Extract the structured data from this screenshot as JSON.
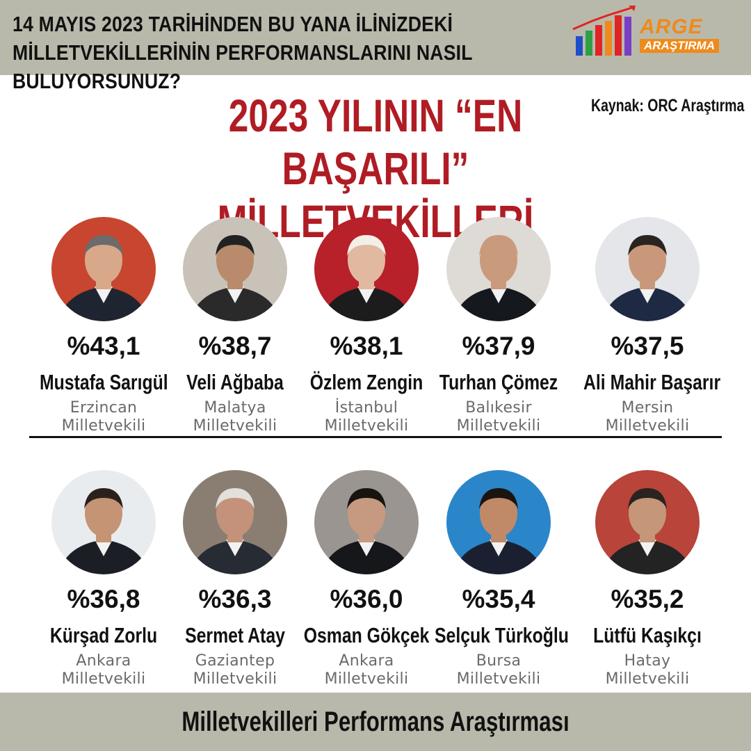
{
  "header": {
    "question_line1": "14 MAYIS 2023 TARİHİNDEN BU YANA İLİNİZDEKİ",
    "question_line2": "MİLLETVEKİLLERİNİN PERFORMANSLARINI NASIL BULUYORSUNUZ?"
  },
  "logo": {
    "word": "ARGE",
    "sub": "ARAŞTIRMA",
    "colors": {
      "orange": "#ee8a1b",
      "red": "#e02424",
      "blue": "#1f4fc8",
      "green": "#2ea043",
      "purple": "#7a3fc4"
    }
  },
  "title": {
    "line1": "2023 YILININ “EN BAŞARILI”",
    "line2": "MİLLETVEKİLLERİ",
    "color": "#b01c24"
  },
  "source": "Kaynak: ORC Araştırma",
  "deputies": [
    {
      "percent": "%43,1",
      "name": "Mustafa Sarıgül",
      "city": "Erzincan",
      "role": "Milletvekili",
      "bg": "#c8452f",
      "suit": "#1f2530",
      "skin": "#d8a88a",
      "hair": "#6b6b6b"
    },
    {
      "percent": "%38,7",
      "name": "Veli Ağbaba",
      "city": "Malatya",
      "role": "Milletvekili",
      "bg": "#c9c2b8",
      "suit": "#2a2a2a",
      "skin": "#b98a6c",
      "hair": "#222222"
    },
    {
      "percent": "%38,1",
      "name": "Özlem Zengin",
      "city": "İstanbul",
      "role": "Milletvekili",
      "bg": "#b8202a",
      "suit": "#1c1c1c",
      "skin": "#e0b9a0",
      "hair": "#f3efe7"
    },
    {
      "percent": "%37,9",
      "name": "Turhan Çömez",
      "city": "Balıkesir",
      "role": "Milletvekili",
      "bg": "#dedad6",
      "suit": "#15181d",
      "skin": "#c99a7c",
      "hair": "#c99a7c"
    },
    {
      "percent": "%37,5",
      "name": "Ali Mahir Başarır",
      "city": "Mersin",
      "role": "Milletvekili",
      "bg": "#e4e6ea",
      "suit": "#1e2a44",
      "skin": "#c9987a",
      "hair": "#2a2420"
    },
    {
      "percent": "%36,8",
      "name": "Kürşad Zorlu",
      "city": "Ankara",
      "role": "Milletvekili",
      "bg": "#e9ecef",
      "suit": "#1b1e24",
      "skin": "#c49474",
      "hair": "#2b211c"
    },
    {
      "percent": "%36,3",
      "name": "Sermet Atay",
      "city": "Gaziantep",
      "role": "Milletvekili",
      "bg": "#8a7e72",
      "suit": "#272b33",
      "skin": "#c4927a",
      "hair": "#e3e0db"
    },
    {
      "percent": "%36,0",
      "name": "Osman Gökçek",
      "city": "Ankara",
      "role": "Milletvekili",
      "bg": "#9a9590",
      "suit": "#15171b",
      "skin": "#c69a80",
      "hair": "#17130f"
    },
    {
      "percent": "%35,4",
      "name": "Selçuk Türkoğlu",
      "city": "Bursa",
      "role": "Milletvekili",
      "bg": "#2a86c9",
      "suit": "#1a2030",
      "skin": "#c08a68",
      "hair": "#1b1511"
    },
    {
      "percent": "%35,2",
      "name": "Lütfü Kaşıkçı",
      "city": "Hatay",
      "role": "Milletvekili",
      "bg": "#b8443a",
      "suit": "#232323",
      "skin": "#c69678",
      "hair": "#2a2320"
    }
  ],
  "footer": "Milletvekilleri Performans Araştırması"
}
